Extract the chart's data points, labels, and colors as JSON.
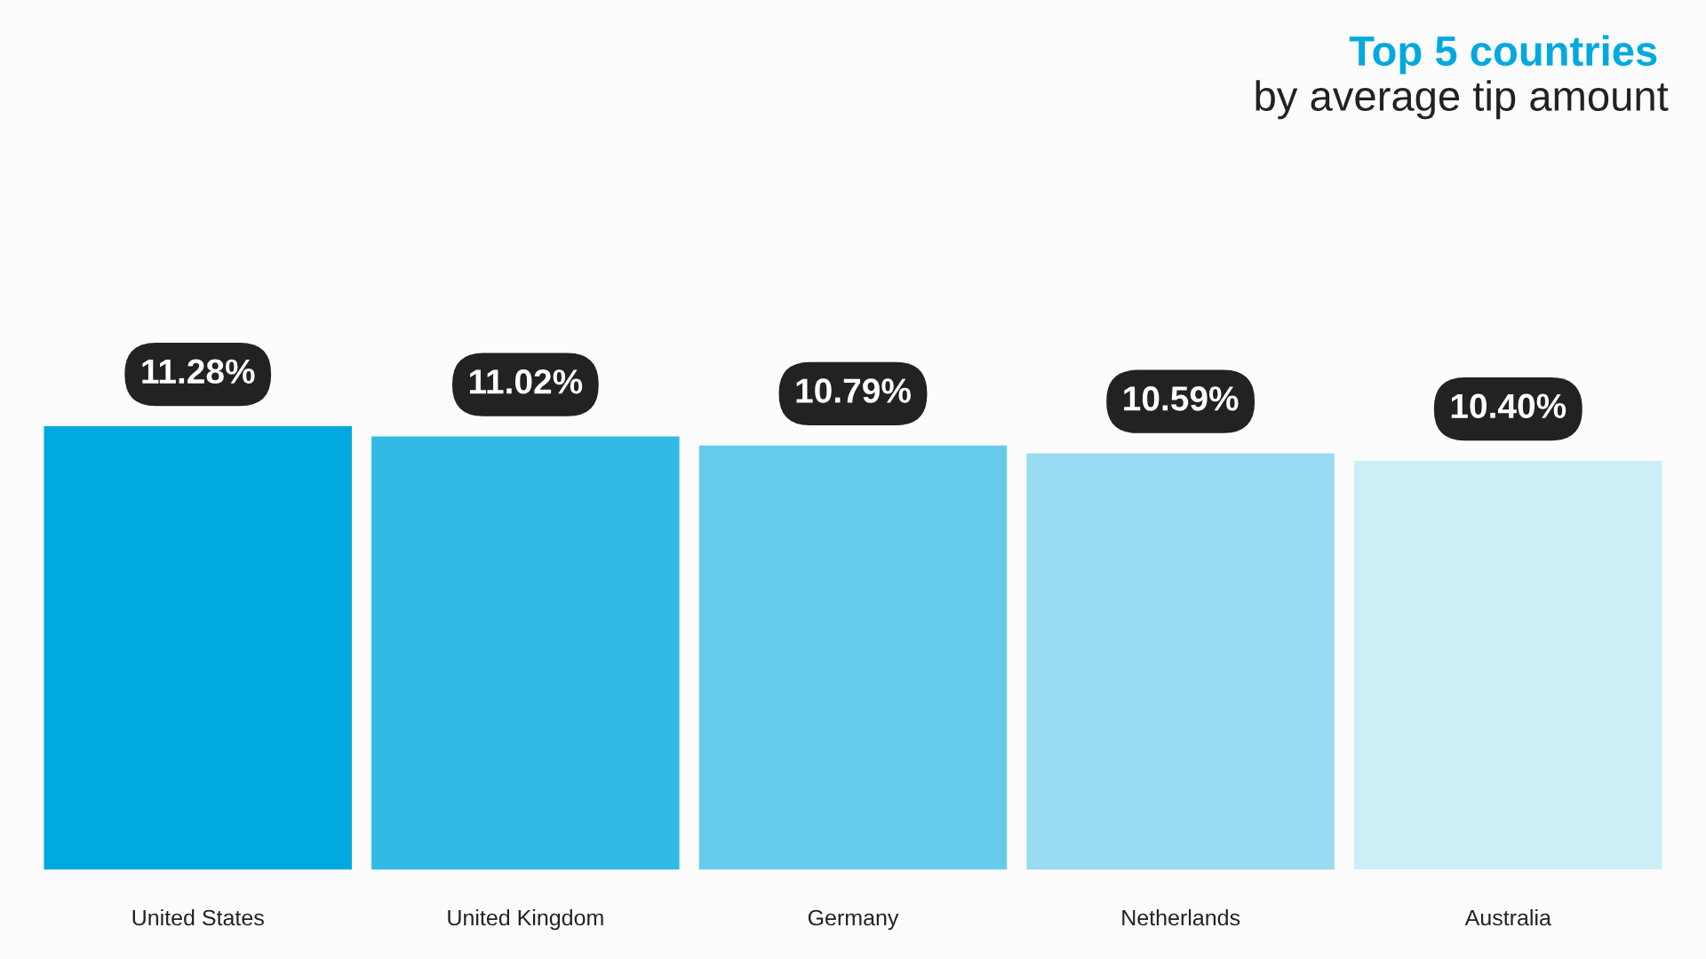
{
  "chart_data": {
    "type": "bar",
    "title": "Top 5 countries",
    "subtitle": "by average tip amount",
    "categories": [
      "United States",
      "United Kingdom",
      "Germany",
      "Netherlands",
      "Australia"
    ],
    "values": [
      11.28,
      11.02,
      10.79,
      10.59,
      10.4
    ],
    "value_labels": [
      "11.28%",
      "11.02%",
      "10.79%",
      "10.59%",
      "10.40%"
    ],
    "colors": [
      "#00a9e0",
      "#33b9e6",
      "#66cbeb",
      "#99dbf1",
      "#cceef7"
    ],
    "grid": false,
    "legend": false
  }
}
